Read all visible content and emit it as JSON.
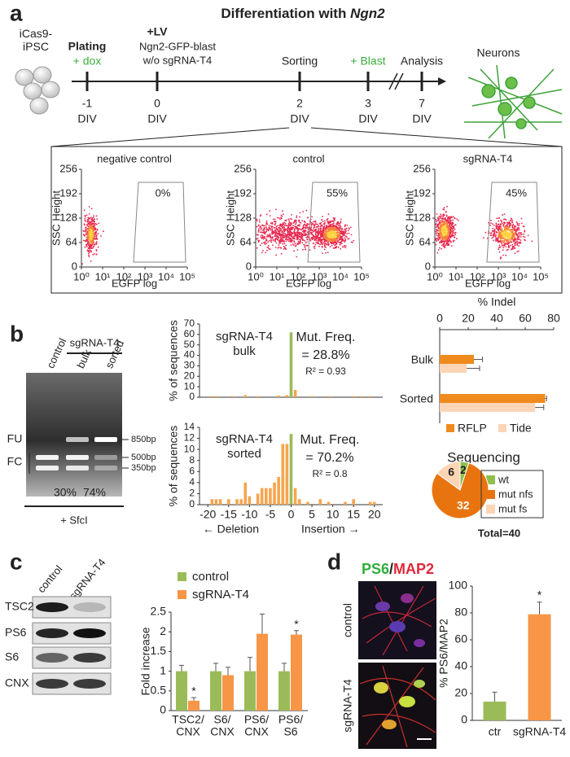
{
  "panels": [
    "a",
    "b",
    "c",
    "d"
  ],
  "title": "Differentiation with ",
  "title_em": "Ngn2",
  "timeline": {
    "start_label": "iCas9-\niPSC",
    "end_label": "Neurons",
    "unit": "DIV",
    "events": [
      {
        "day": "-1",
        "label": "Plating",
        "note": "+ dox"
      },
      {
        "day": "0",
        "label": "+LV",
        "note": "Ngn2-GFP-blast\nw/o sgRNA-T4"
      },
      {
        "day": "2",
        "label": "Sorting"
      },
      {
        "day": "3",
        "note": "+ Blast"
      },
      {
        "day": "7",
        "label": "Analysis"
      }
    ]
  },
  "facs": {
    "y_label": "SSC Height",
    "x_label": "EGFP log",
    "ylim": [
      0,
      256
    ],
    "yticks": [
      0,
      64,
      128,
      192,
      256
    ],
    "xlim": [
      1,
      100000
    ],
    "xlog": true,
    "xticks": [
      {
        "value": 1,
        "label": "10⁰"
      },
      {
        "value": 10,
        "label": "10¹"
      },
      {
        "value": 100,
        "label": "10²"
      },
      {
        "value": 1000,
        "label": "10³"
      },
      {
        "value": 10000,
        "label": "10⁴"
      },
      {
        "value": 100000,
        "label": "10⁵"
      }
    ],
    "plots": [
      {
        "title": "negative control",
        "gate": "0%"
      },
      {
        "title": "control",
        "gate": "55%"
      },
      {
        "title": "sgRNA-T4",
        "gate": "45%"
      }
    ]
  },
  "gel": {
    "group": "sgRNA-T4",
    "lanes": [
      "control",
      "bulk",
      "sorted"
    ],
    "bands": [
      "FU",
      "FC"
    ],
    "markers": [
      "850bp",
      "500bp",
      "350bp"
    ],
    "cut": [
      "30%",
      "74%"
    ],
    "enzyme": "+ SfcI"
  },
  "western": {
    "lanes": [
      "control",
      "sgRNA-T4"
    ],
    "proteins": [
      "TSC2",
      "PS6",
      "S6",
      "CNX"
    ]
  },
  "imaging": {
    "stain_a": "PS6",
    "sep": "/",
    "stain_b": "MAP2",
    "rows": [
      "control",
      "sgRNA-T4"
    ]
  },
  "chart_data": [
    {
      "type": "bar",
      "label": "sgRNA-T4\nbulk",
      "stat_title": "Mut. Freq.",
      "stat": "= 28.8%",
      "r2": "R² = 0.93",
      "y_label": "% of sequences",
      "x": [
        -19,
        -18,
        -14,
        -11,
        -8,
        -3,
        -1,
        0,
        1,
        5,
        9,
        15,
        17,
        19
      ],
      "values": [
        1,
        1,
        1,
        2,
        1,
        1.5,
        2,
        62,
        7,
        1,
        1,
        1,
        1,
        1
      ],
      "colors": [
        "#f6a54e",
        "#f6a54e",
        "#f6a54e",
        "#f6a54e",
        "#f6a54e",
        "#f6a54e",
        "#f6a54e",
        "#9bbb59",
        "#f6a54e",
        "#f6a54e",
        "#f6a54e",
        "#f6a54e",
        "#f6a54e",
        "#f6a54e"
      ],
      "xlim": [
        -22,
        22
      ],
      "ylim": [
        0,
        70
      ],
      "yticks": [
        0,
        10,
        20,
        30,
        40,
        50,
        60,
        70
      ]
    },
    {
      "type": "bar",
      "label": "sgRNA-T4\nsorted",
      "stat_title": "Mut. Freq.",
      "stat": "= 70.2%",
      "r2": "R² = 0.8",
      "y_label": "% of sequences",
      "x_label_left": "← Deletion",
      "x_label_right": "Insertion →",
      "x": [
        -19,
        -18,
        -17,
        -15,
        -13,
        -12,
        -11,
        -10,
        -8,
        -7,
        -6,
        -5,
        -4,
        -3,
        -2,
        -1,
        0,
        1,
        2,
        4,
        7,
        9,
        13,
        15,
        19,
        20
      ],
      "values": [
        1,
        1,
        1,
        1,
        1,
        1,
        4,
        1.5,
        2,
        3,
        3,
        3,
        4,
        5,
        11,
        11,
        12.8,
        3,
        1,
        0.5,
        1,
        0.5,
        0.5,
        1,
        0.5,
        0.5
      ],
      "colors": [
        "#f6a54e",
        "#f6a54e",
        "#f6a54e",
        "#f6a54e",
        "#f6a54e",
        "#f6a54e",
        "#f6a54e",
        "#f6a54e",
        "#f6a54e",
        "#f6a54e",
        "#f6a54e",
        "#f6a54e",
        "#f6a54e",
        "#f6a54e",
        "#f6a54e",
        "#f6a54e",
        "#9bbb59",
        "#f6a54e",
        "#f6a54e",
        "#f6a54e",
        "#f6a54e",
        "#f6a54e",
        "#f6a54e",
        "#f6a54e",
        "#f6a54e",
        "#f6a54e"
      ],
      "xlim": [
        -22,
        22
      ],
      "ylim": [
        0,
        14
      ],
      "yticks": [
        0,
        2,
        4,
        6,
        8,
        10,
        12,
        14
      ],
      "xticks": [
        -20,
        -15,
        -10,
        -5,
        0,
        5,
        10,
        15,
        20
      ]
    },
    {
      "type": "hbar",
      "title": "% Indel",
      "categories": [
        "Bulk",
        "Sorted"
      ],
      "series": [
        {
          "name": "RFLP",
          "color": "#ef8a1d",
          "values": [
            24,
            74
          ],
          "errors": [
            6,
            1
          ]
        },
        {
          "name": "Tide",
          "color": "#fbd5b5",
          "values": [
            19,
            67
          ],
          "errors": [
            9,
            6
          ]
        }
      ],
      "xlim": [
        0,
        80
      ],
      "xticks": [
        0,
        20,
        40,
        60,
        80
      ]
    },
    {
      "type": "pie",
      "title": "Sequencing",
      "categories": [
        "wt",
        "mut nfs",
        "mut fs"
      ],
      "values": [
        2,
        32,
        6
      ],
      "colors": [
        "#8fbf4d",
        "#e8740f",
        "#fcd5b5"
      ],
      "total": "Total=40"
    },
    {
      "type": "groupbar",
      "y_label": "Fold increase",
      "categories": [
        "TSC2/\nCNX",
        "S6/\nCNX",
        "PS6/\nCNX",
        "PS6/\nS6"
      ],
      "series": [
        {
          "name": "control",
          "color": "#9bbb59",
          "values": [
            1,
            1,
            1,
            1
          ],
          "errors": [
            0.15,
            0.2,
            0.35,
            0.2
          ],
          "significance": [
            null,
            null,
            null,
            null
          ]
        },
        {
          "name": "sgRNA-T4",
          "color": "#f79646",
          "values": [
            0.25,
            0.9,
            1.95,
            1.93
          ],
          "errors": [
            0.08,
            0.2,
            0.5,
            0.1
          ],
          "significance": [
            "*",
            null,
            null,
            "*"
          ]
        }
      ],
      "ylim": [
        0,
        2.5
      ],
      "yticks": [
        0,
        0.5,
        1,
        1.5,
        2,
        2.5
      ]
    },
    {
      "type": "colorbar",
      "y_label": "% PS6/MAP2",
      "categories": [
        "ctr",
        "sgRNA-T4"
      ],
      "values": [
        14,
        79
      ],
      "errors": [
        7,
        9
      ],
      "colors": [
        "#9bbb59",
        "#f79646"
      ],
      "significance": [
        null,
        "*"
      ],
      "ylim": [
        0,
        100
      ],
      "yticks": [
        0,
        20,
        40,
        60,
        80,
        100
      ]
    }
  ]
}
